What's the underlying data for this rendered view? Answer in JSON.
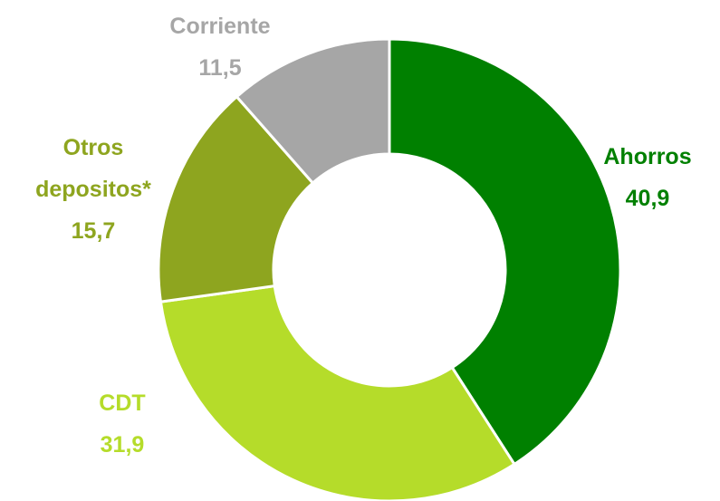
{
  "chart_data": {
    "type": "donut",
    "categories": [
      "Ahorros",
      "CDT",
      "Otros depositos*",
      "Corriente"
    ],
    "values": [
      40.9,
      31.9,
      15.7,
      11.5
    ],
    "value_labels": [
      "40,9",
      "31,9",
      "15,7",
      "11,5"
    ],
    "colors": [
      "#008000",
      "#b5dc2a",
      "#8ea51f",
      "#a6a6a6"
    ]
  }
}
